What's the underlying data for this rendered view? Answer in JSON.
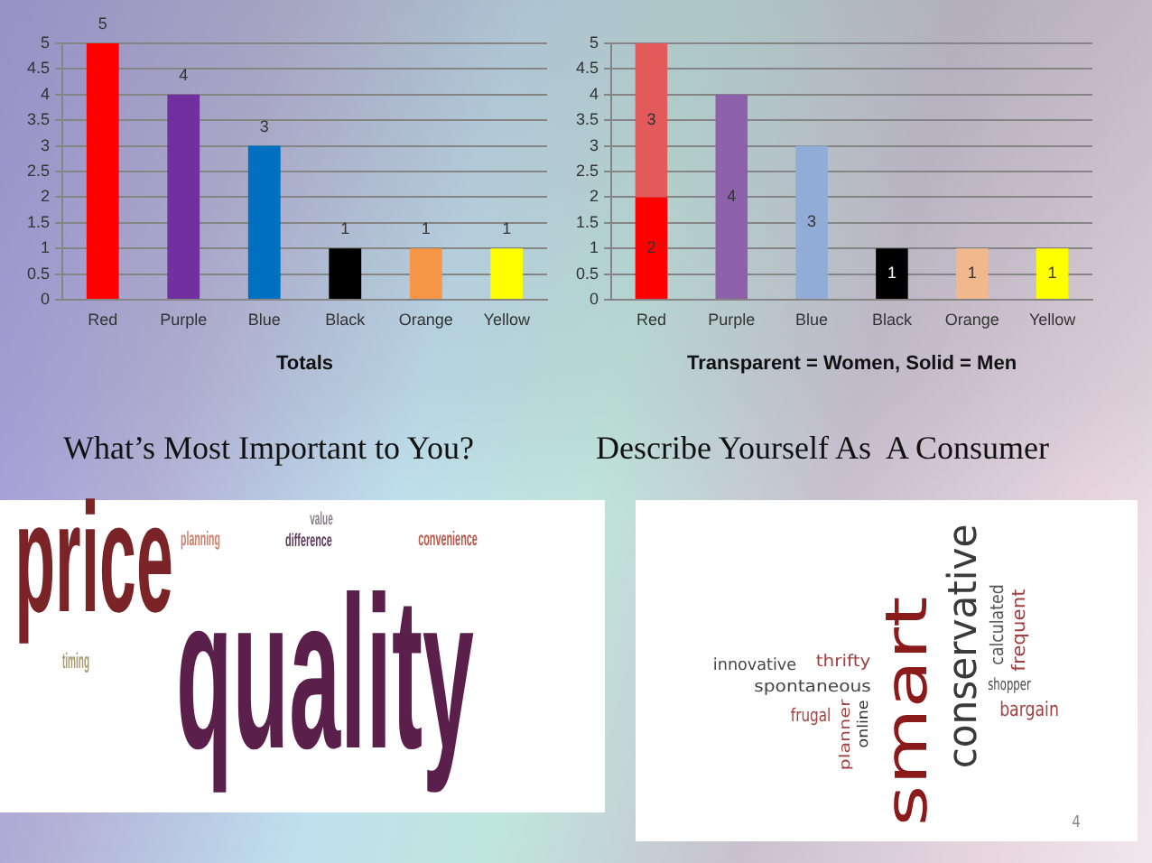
{
  "chart_data": [
    {
      "type": "bar",
      "xlabel": "Totals",
      "categories": [
        "Red",
        "Purple",
        "Blue",
        "Black",
        "Orange",
        "Yellow"
      ],
      "values": [
        5,
        4,
        3,
        1,
        1,
        1
      ],
      "colors": [
        "#ff0000",
        "#7030a0",
        "#0070c0",
        "#000000",
        "#f79646",
        "#ffff00"
      ],
      "ylim": [
        0,
        5
      ],
      "yticks": [
        0,
        0.5,
        1,
        1.5,
        2,
        2.5,
        3,
        3.5,
        4,
        4.5,
        5
      ],
      "grid": "y",
      "data_labels": true
    },
    {
      "type": "bar",
      "stacked": true,
      "xlabel": "Transparent = Women, Solid = Men",
      "categories": [
        "Red",
        "Purple",
        "Blue",
        "Black",
        "Orange",
        "Yellow"
      ],
      "series": [
        {
          "colors": [
            "#ff0000",
            "#a0623a",
            "#6fa04a",
            "#000000",
            "#f79646",
            "#ffff00"
          ],
          "values": [
            2,
            0,
            0,
            1,
            0,
            1
          ],
          "value_labels": [
            "2",
            null,
            null,
            "1",
            null,
            "1"
          ]
        },
        {
          "colors": [
            "#e25a5a",
            "#8e62aa",
            "#92acd8",
            "#505050",
            "#f0b88c",
            "#f0f080"
          ],
          "values": [
            3,
            4,
            3,
            0,
            1,
            0
          ],
          "value_labels": [
            "3",
            "4",
            "3",
            null,
            "1",
            null
          ]
        }
      ],
      "ylim": [
        0,
        5
      ],
      "yticks": [
        0,
        0.5,
        1,
        1.5,
        2,
        2.5,
        3,
        3.5,
        4,
        4.5,
        5
      ],
      "grid": "y"
    },
    {
      "type": "other",
      "title": "What’s Most Important to You?",
      "annotations": [
        "price",
        "quality",
        "planning",
        "value",
        "difference",
        "convenience",
        "timing"
      ]
    },
    {
      "type": "other",
      "title": "Describe Yourself As  A Consumer",
      "annotations": [
        "smart",
        "conservative",
        "calculated",
        "frequent",
        "shopper",
        "bargain",
        "thrifty",
        "innovative",
        "spontaneous",
        "frugal",
        "planner",
        "online",
        "4"
      ]
    }
  ]
}
